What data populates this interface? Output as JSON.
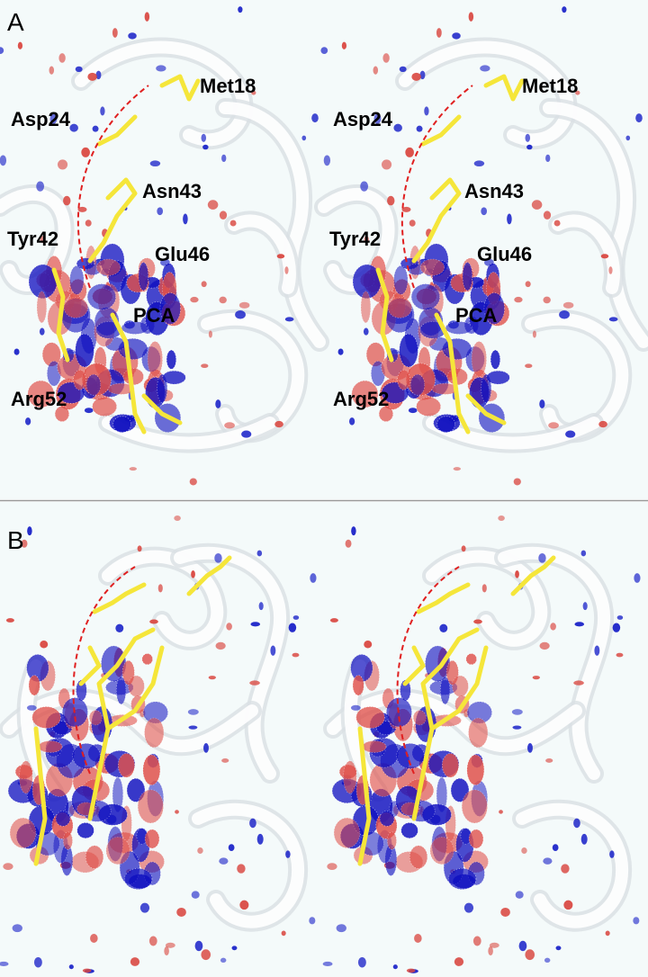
{
  "panels": [
    {
      "label": "A",
      "views": [
        {
          "residues": [
            "Met18",
            "Asp24",
            "Asn43",
            "Tyr42",
            "Glu46",
            "PCA",
            "Arg52"
          ]
        },
        {
          "residues": [
            "Met18",
            "Asp24",
            "Asn43",
            "Tyr42",
            "Glu46",
            "PCA",
            "Arg52"
          ]
        }
      ]
    },
    {
      "label": "B"
    }
  ]
}
